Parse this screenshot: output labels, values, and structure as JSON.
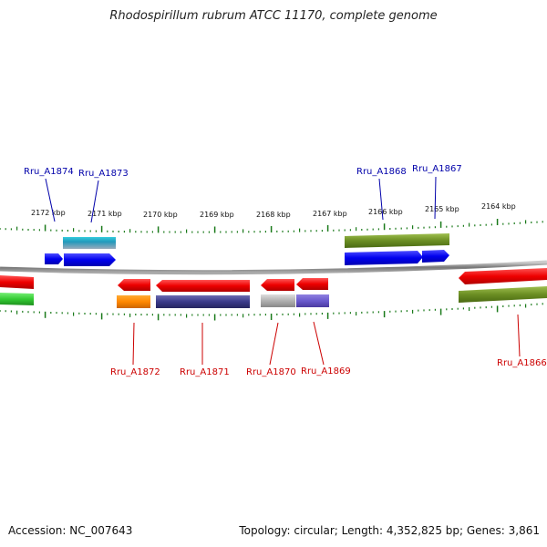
{
  "title": "Rhodospirillum rubrum ATCC 11170, complete genome",
  "footer": {
    "accession": "Accession: NC_007643",
    "stats": "Topology: circular; Length: 4,352,825 bp; Genes: 3,861"
  },
  "scale_ticks": [
    {
      "label": "2172 kbp",
      "kbp": 2172
    },
    {
      "label": "2171 kbp",
      "kbp": 2171
    },
    {
      "label": "2170 kbp",
      "kbp": 2170
    },
    {
      "label": "2169 kbp",
      "kbp": 2169
    },
    {
      "label": "2168 kbp",
      "kbp": 2168
    },
    {
      "label": "2167 kbp",
      "kbp": 2167
    },
    {
      "label": "2166 kbp",
      "kbp": 2166
    },
    {
      "label": "2165 kbp",
      "kbp": 2165
    },
    {
      "label": "2164 kbp",
      "kbp": 2164
    }
  ],
  "gene_labels": [
    {
      "id": "Rru_A1874",
      "strand": "forward",
      "color": "#0000aa"
    },
    {
      "id": "Rru_A1873",
      "strand": "forward",
      "color": "#0000aa"
    },
    {
      "id": "Rru_A1868",
      "strand": "forward",
      "color": "#0000aa"
    },
    {
      "id": "Rru_A1867",
      "strand": "forward",
      "color": "#0000aa"
    },
    {
      "id": "Rru_A1872",
      "strand": "reverse",
      "color": "#cc0000"
    },
    {
      "id": "Rru_A1871",
      "strand": "reverse",
      "color": "#cc0000"
    },
    {
      "id": "Rru_A1870",
      "strand": "reverse",
      "color": "#cc0000"
    },
    {
      "id": "Rru_A1869",
      "strand": "reverse",
      "color": "#cc0000"
    },
    {
      "id": "Rru_A1866",
      "strand": "reverse",
      "color": "#cc0000"
    }
  ],
  "colors": {
    "forward_cds": "#0000ee",
    "reverse_cds": "#ee0000",
    "forward_label": "#0000aa",
    "reverse_label": "#cc0000",
    "tick": "#1a7a1a",
    "backbone": "#888888",
    "olive": "#6b8e23",
    "cyan": "#22bbcc",
    "orange": "#ff8800",
    "navy": "#3a3a8a",
    "grey": "#b0b0b0",
    "violet": "#6a5acd",
    "green": "#33cc33"
  }
}
